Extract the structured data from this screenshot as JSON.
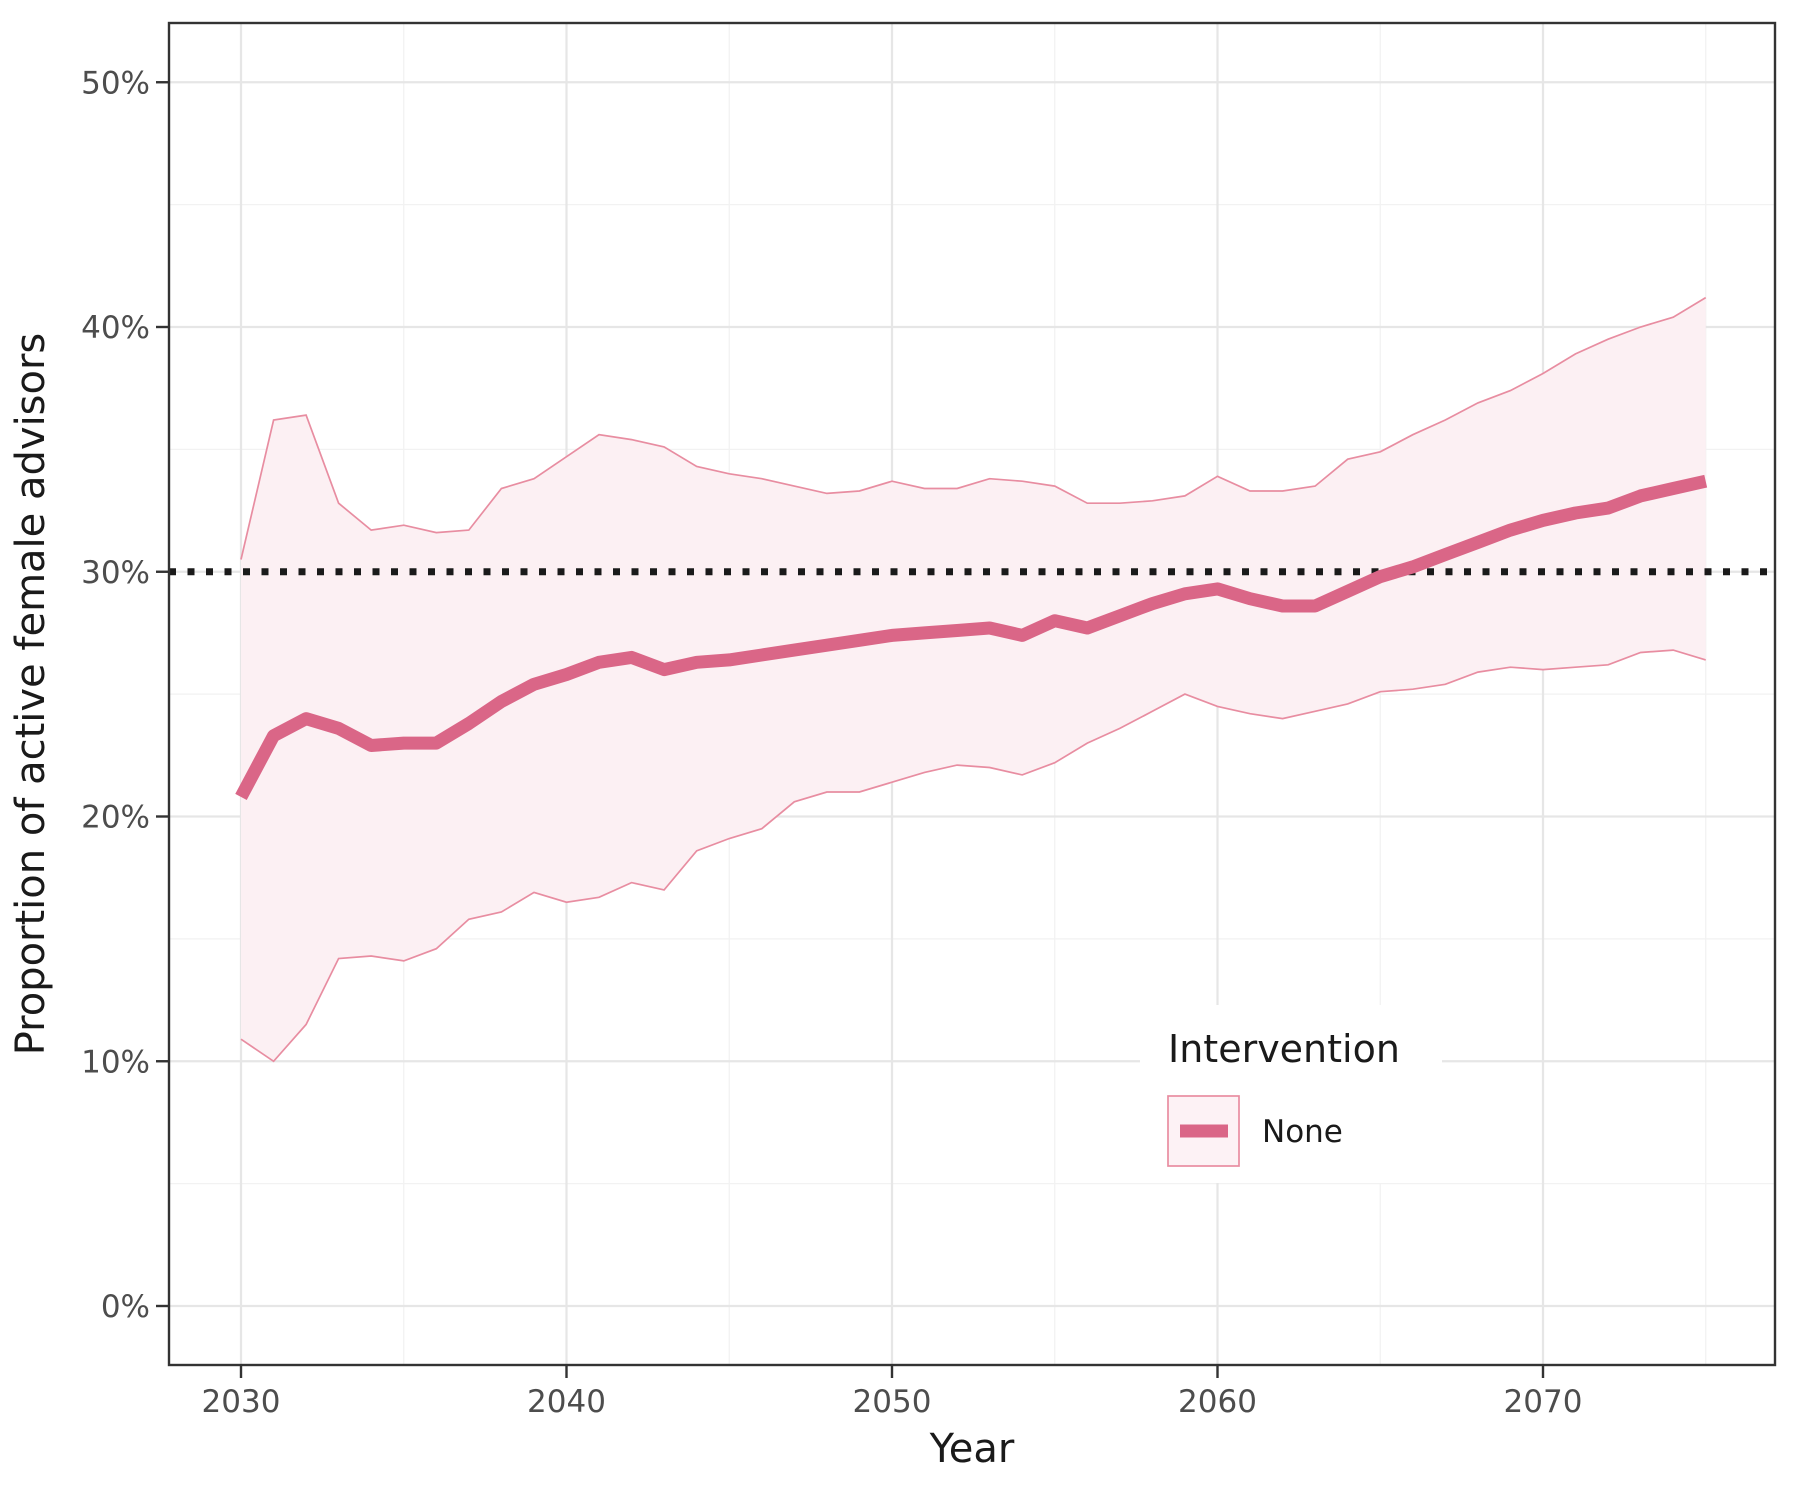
{
  "chart_data": {
    "type": "line",
    "title": "",
    "xlabel": "Year",
    "ylabel": "Proportion of active female advisors",
    "grid": true,
    "xlim": [
      2027.8,
      2077.2
    ],
    "ylim_percent": [
      -2.4,
      52.4
    ],
    "x_major_ticks": [
      2030,
      2040,
      2050,
      2060,
      2070
    ],
    "x_minor_ticks": [
      2035,
      2045,
      2055,
      2065,
      2075
    ],
    "y_major_ticks": [
      {
        "value": 0,
        "label": "0%"
      },
      {
        "value": 10,
        "label": "10%"
      },
      {
        "value": 20,
        "label": "20%"
      },
      {
        "value": 30,
        "label": "30%"
      },
      {
        "value": 40,
        "label": "40%"
      },
      {
        "value": 50,
        "label": "50%"
      }
    ],
    "y_minor_ticks": [
      5,
      15,
      25,
      35,
      45
    ],
    "reference_line": {
      "y_percent": 30,
      "style": "dotted"
    },
    "x": [
      2030,
      2031,
      2032,
      2033,
      2034,
      2035,
      2036,
      2037,
      2038,
      2039,
      2040,
      2041,
      2042,
      2043,
      2044,
      2045,
      2046,
      2047,
      2048,
      2049,
      2050,
      2051,
      2052,
      2053,
      2054,
      2055,
      2056,
      2057,
      2058,
      2059,
      2060,
      2061,
      2062,
      2063,
      2064,
      2065,
      2066,
      2067,
      2068,
      2069,
      2070,
      2071,
      2072,
      2073,
      2074,
      2075
    ],
    "series": [
      {
        "name": "None",
        "role": "median",
        "values": [
          20.8,
          23.3,
          24.0,
          23.6,
          22.9,
          23.0,
          23.0,
          23.8,
          24.7,
          25.4,
          25.8,
          26.3,
          26.5,
          26.0,
          26.3,
          26.4,
          26.6,
          26.8,
          27.0,
          27.2,
          27.4,
          27.5,
          27.6,
          27.7,
          27.4,
          28.0,
          27.7,
          28.2,
          28.7,
          29.1,
          29.3,
          28.9,
          28.6,
          28.6,
          29.2,
          29.8,
          30.2,
          30.7,
          31.2,
          31.7,
          32.1,
          32.4,
          32.6,
          33.1,
          33.4,
          33.7
        ]
      },
      {
        "name": "None",
        "role": "upper_bound",
        "values": [
          30.5,
          36.2,
          36.4,
          32.8,
          31.7,
          31.9,
          31.6,
          31.7,
          33.4,
          33.8,
          34.7,
          35.6,
          35.4,
          35.1,
          34.3,
          34.0,
          33.8,
          33.5,
          33.2,
          33.3,
          33.7,
          33.4,
          33.4,
          33.8,
          33.7,
          33.5,
          32.8,
          32.8,
          32.9,
          33.1,
          33.9,
          33.3,
          33.3,
          33.5,
          34.6,
          34.9,
          35.6,
          36.2,
          36.9,
          37.4,
          38.1,
          38.9,
          39.5,
          40.0,
          40.4,
          41.2
        ]
      },
      {
        "name": "None",
        "role": "lower_bound",
        "values": [
          10.9,
          10.0,
          11.5,
          14.2,
          14.3,
          14.1,
          14.6,
          15.8,
          16.1,
          16.9,
          16.5,
          16.7,
          17.3,
          17.0,
          18.6,
          19.1,
          19.5,
          20.6,
          21.0,
          21.0,
          21.4,
          21.8,
          22.1,
          22.0,
          21.7,
          22.2,
          23.0,
          23.6,
          24.3,
          25.0,
          24.5,
          24.2,
          24.0,
          24.3,
          24.6,
          25.1,
          25.2,
          25.4,
          25.9,
          26.1,
          26.0,
          26.1,
          26.2,
          26.7,
          26.8,
          26.4
        ]
      }
    ],
    "legend": {
      "title": "Intervention",
      "position": "inside-lower-right",
      "items": [
        {
          "label": "None",
          "key": "line-on-ribbon-swatch"
        }
      ]
    }
  },
  "colors": {
    "background": "#ffffff",
    "median_line": "#da6687",
    "ribbon_fill": "#fcf0f3",
    "ribbon_edge": "#e88da1",
    "grid_major": "#e6e6e6",
    "grid_minor": "#f2f2f2",
    "panel_border": "#333333",
    "tick_mark": "#333333",
    "tick_label": "#4d4d4d",
    "axis_title": "#1a1a1a",
    "reference_line": "#1a1a1a",
    "legend_key_fill": "#fdf2f5",
    "legend_key_border": "#e88da1",
    "legend_text": "#1a1a1a"
  }
}
